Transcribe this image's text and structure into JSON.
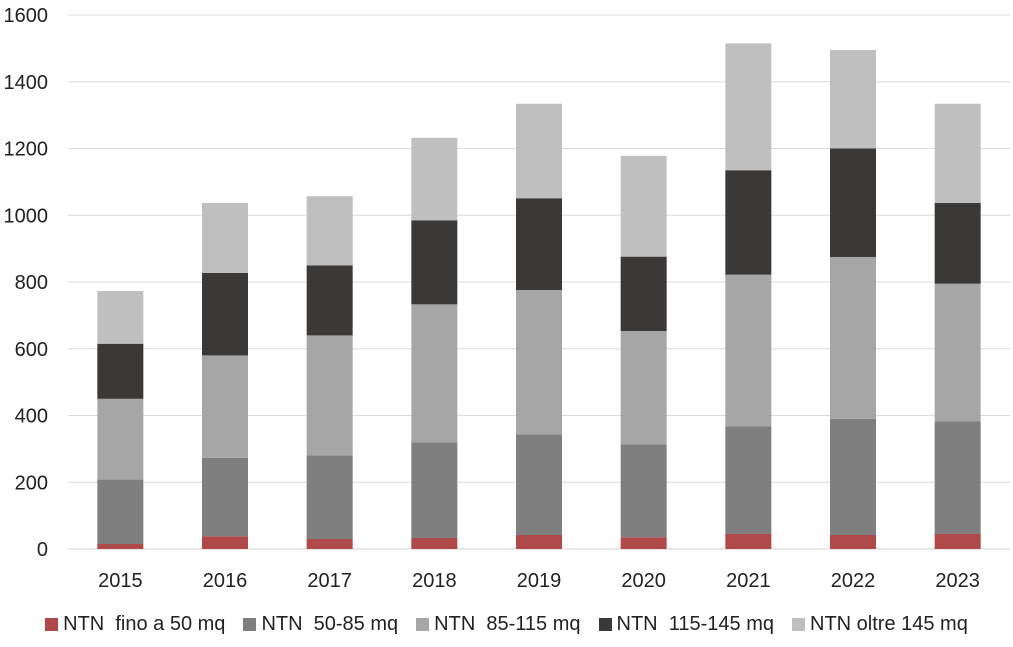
{
  "chart_data": {
    "type": "bar",
    "stacked": true,
    "title": "",
    "xlabel": "",
    "ylabel": "",
    "ylim": [
      0,
      1600
    ],
    "yticks": [
      0,
      200,
      400,
      600,
      800,
      1000,
      1200,
      1400,
      1600
    ],
    "ytick_labels": [
      "0",
      "200",
      "400",
      "600",
      "800",
      "1000",
      "1200",
      "1400",
      "1600"
    ],
    "grid": true,
    "legend_position": "bottom",
    "categories": [
      "2015",
      "2016",
      "2017",
      "2018",
      "2019",
      "2020",
      "2021",
      "2022",
      "2023"
    ],
    "series": [
      {
        "name": "NTN  fino a 50 mq",
        "color": "#b04a4a",
        "values": [
          15,
          38,
          30,
          33,
          42,
          35,
          45,
          42,
          45
        ]
      },
      {
        "name": "NTN  50-85 mq",
        "color": "#7f7f7f",
        "values": [
          193,
          235,
          250,
          287,
          302,
          278,
          322,
          348,
          337
        ]
      },
      {
        "name": "NTN  85-115 mq",
        "color": "#a6a6a6",
        "values": [
          242,
          307,
          360,
          413,
          432,
          340,
          455,
          485,
          413
        ]
      },
      {
        "name": "NTN  115-145 mq",
        "color": "#3b3838",
        "values": [
          165,
          247,
          210,
          252,
          275,
          223,
          313,
          325,
          242
        ]
      },
      {
        "name": "NTN oltre 145 mq",
        "color": "#bfbfbf",
        "values": [
          158,
          210,
          207,
          247,
          283,
          302,
          380,
          295,
          297
        ]
      }
    ]
  }
}
